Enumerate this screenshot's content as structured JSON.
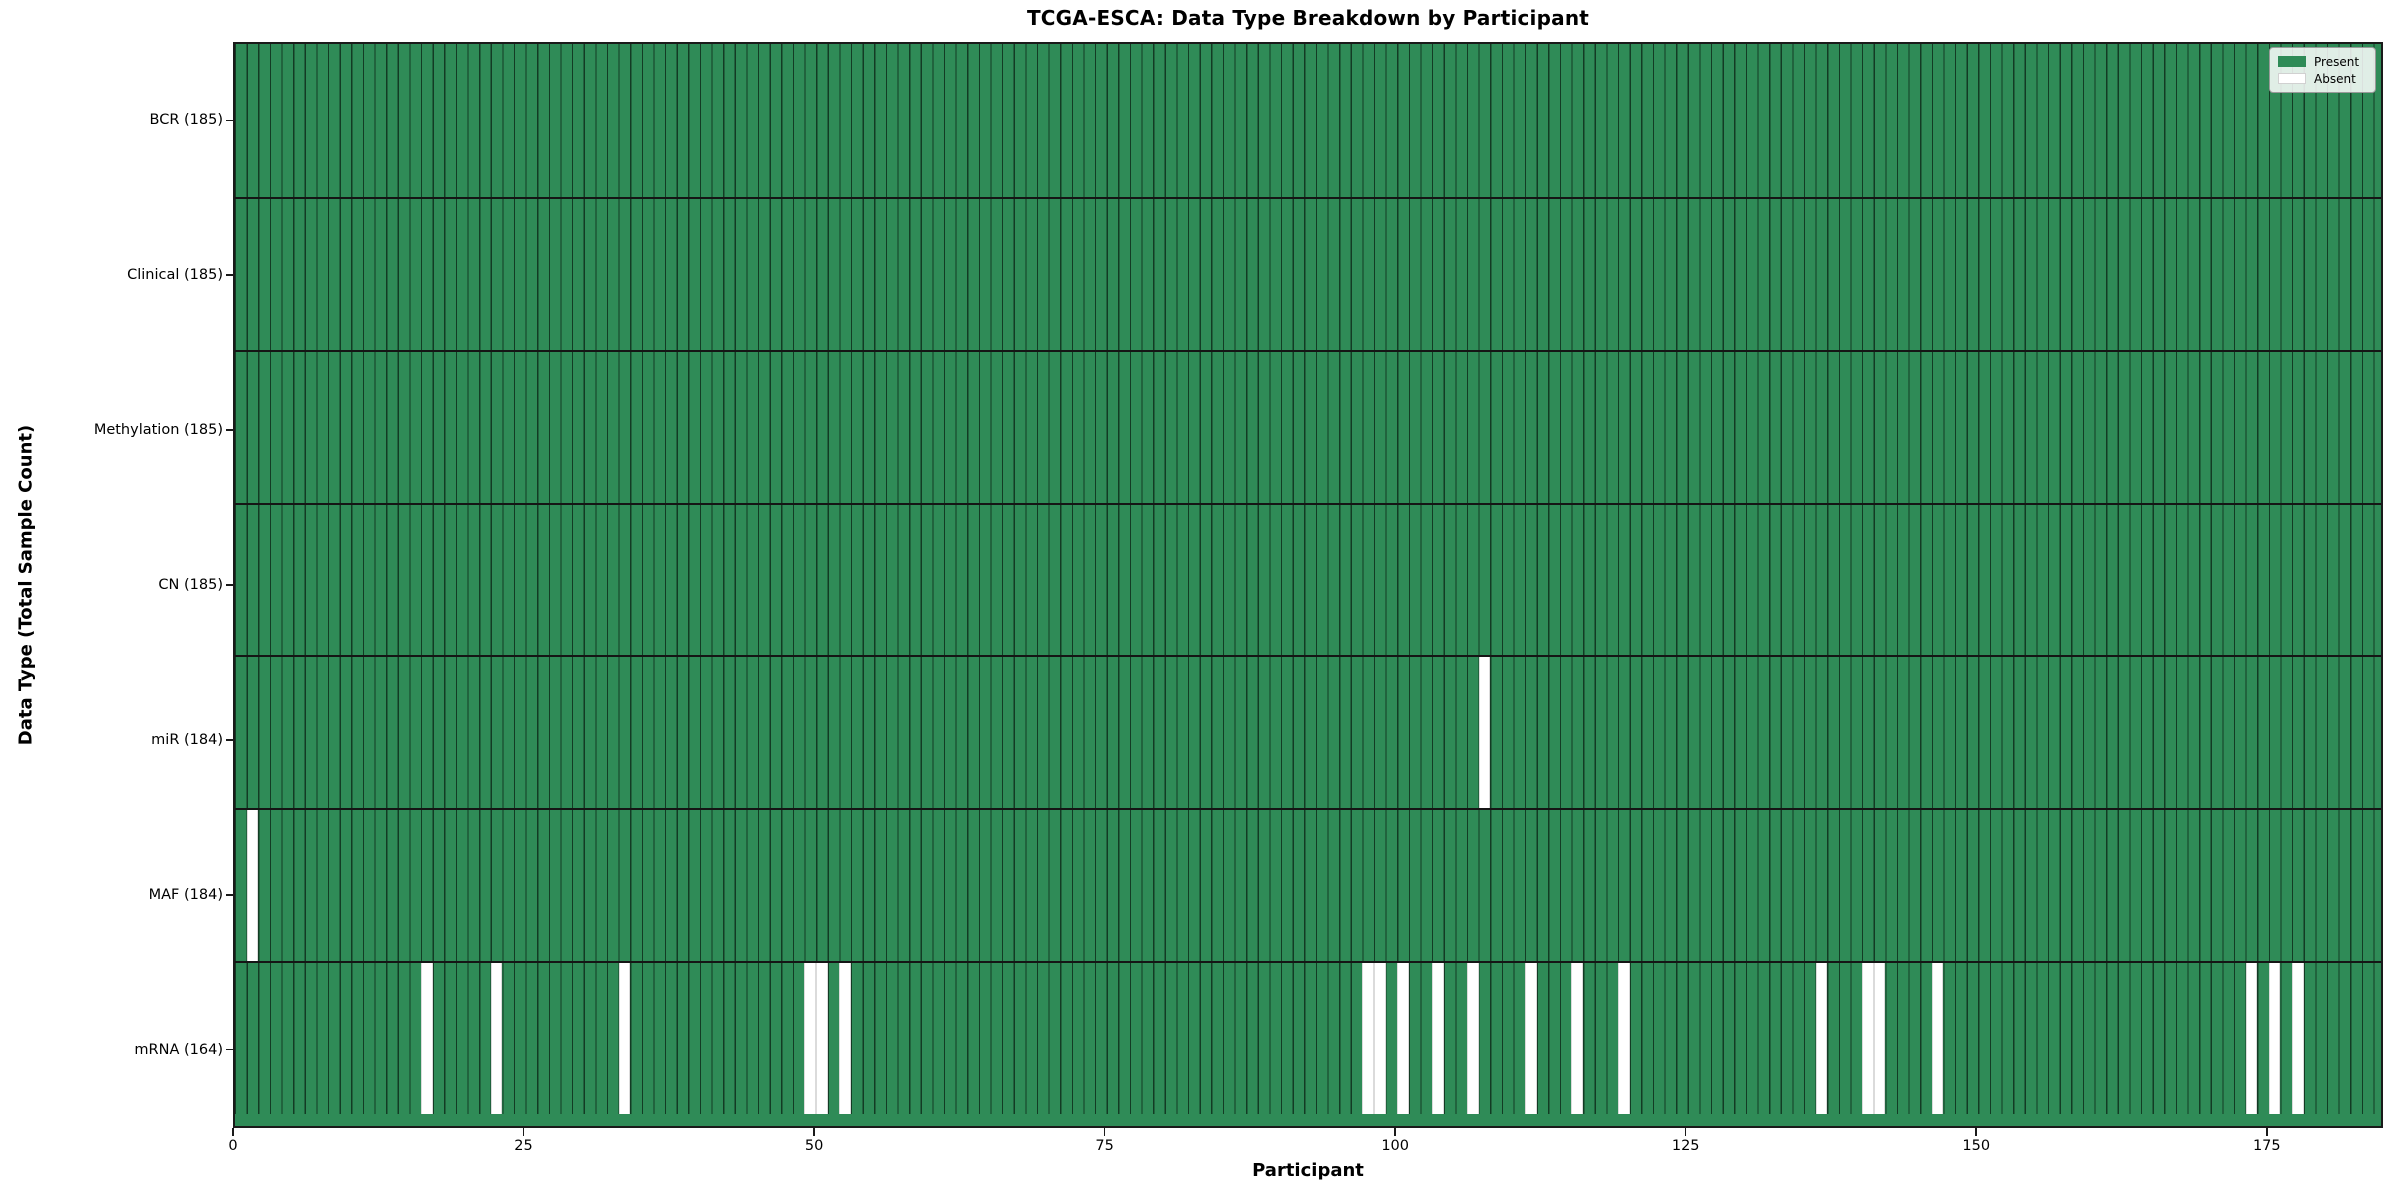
{
  "chart_data": {
    "type": "heatmap",
    "title": "TCGA-ESCA: Data Type Breakdown by Participant",
    "xlabel": "Participant",
    "ylabel": "Data Type (Total Sample Count)",
    "n_participants": 185,
    "x_range": [
      0,
      185
    ],
    "x_ticks": [
      0,
      25,
      50,
      75,
      100,
      125,
      150,
      175
    ],
    "grid": false,
    "legend_position": "upper right",
    "legend": [
      {
        "label": "Present",
        "color": "#2f8b57"
      },
      {
        "label": "Absent",
        "color": "#ffffff"
      }
    ],
    "colors": {
      "present": "#2f8b57",
      "absent": "#ffffff",
      "cell_edge": "#0a1c10",
      "axis": "#1a1a1a"
    },
    "rows": [
      {
        "label": "BCR (185)",
        "data_type": "BCR",
        "total_samples": 185,
        "absent_participants": []
      },
      {
        "label": "Clinical (185)",
        "data_type": "Clinical",
        "total_samples": 185,
        "absent_participants": []
      },
      {
        "label": "Methylation (185)",
        "data_type": "Methylation",
        "total_samples": 185,
        "absent_participants": []
      },
      {
        "label": "CN (185)",
        "data_type": "CN",
        "total_samples": 185,
        "absent_participants": []
      },
      {
        "label": "miR (184)",
        "data_type": "miR",
        "total_samples": 184,
        "absent_participants": [
          107
        ]
      },
      {
        "label": "MAF (184)",
        "data_type": "MAF",
        "total_samples": 184,
        "absent_participants": [
          1
        ]
      },
      {
        "label": "mRNA (164)",
        "data_type": "mRNA",
        "total_samples": 164,
        "absent_participants": [
          16,
          22,
          33,
          49,
          50,
          52,
          97,
          98,
          100,
          103,
          106,
          111,
          115,
          119,
          136,
          140,
          141,
          146,
          173,
          175,
          177
        ]
      }
    ]
  }
}
